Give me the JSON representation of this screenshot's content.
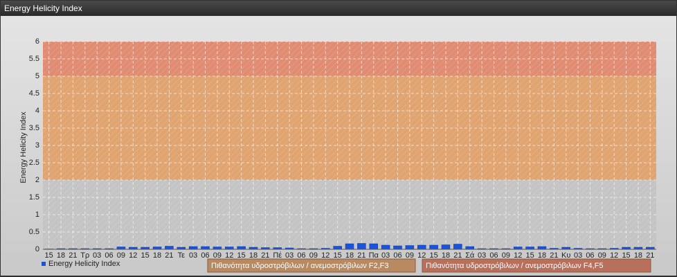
{
  "chart_data": {
    "type": "bar",
    "title": "Energy Helicity Index",
    "y_label": "Energy Helicity Index",
    "categories": [
      "15",
      "18",
      "21",
      "Τρ",
      "03",
      "06",
      "09",
      "12",
      "15",
      "18",
      "21",
      "Τε",
      "03",
      "06",
      "09",
      "12",
      "15",
      "18",
      "21",
      "Πέ",
      "03",
      "06",
      "09",
      "12",
      "15",
      "18",
      "21",
      "Πα",
      "03",
      "06",
      "09",
      "12",
      "15",
      "18",
      "21",
      "Σά",
      "03",
      "06",
      "09",
      "12",
      "15",
      "18",
      "21",
      "Κυ",
      "03",
      "06",
      "09",
      "12",
      "15",
      "18",
      "21"
    ],
    "series": [
      {
        "name": "Energy Helicity Index",
        "color": "#1a52d8",
        "values": [
          0.01,
          0.02,
          0.02,
          0.02,
          0.02,
          0.02,
          0.07,
          0.06,
          0.06,
          0.07,
          0.09,
          0.06,
          0.08,
          0.08,
          0.07,
          0.07,
          0.08,
          0.06,
          0.05,
          0.05,
          0.04,
          0.02,
          0.02,
          0.03,
          0.09,
          0.16,
          0.17,
          0.16,
          0.12,
          0.1,
          0.11,
          0.12,
          0.12,
          0.13,
          0.15,
          0.08,
          0.02,
          0.02,
          0.02,
          0.07,
          0.07,
          0.08,
          0.03,
          0.06,
          0.03,
          0.02,
          0.02,
          0.03,
          0.06,
          0.06,
          0.06
        ]
      }
    ],
    "ylim": [
      0,
      6
    ],
    "yticks": [
      0,
      0.5,
      1,
      1.5,
      2,
      2.5,
      3,
      3.5,
      4,
      4.5,
      5,
      5.5,
      6
    ],
    "grid": true,
    "background_color": "#c4c4c4",
    "plot_bands": [
      {
        "from": 2,
        "to": 5,
        "color": "#e0a470",
        "label": "Πιθανότητα υδροστρόβιλων / ανεμοστρόβιλων F2,F3"
      },
      {
        "from": 5,
        "to": 6,
        "color": "#e08c72",
        "label": "Πιθανότητα υδροστρόβιλων / ανεμοστρόβιλων F4,F5"
      }
    ]
  }
}
